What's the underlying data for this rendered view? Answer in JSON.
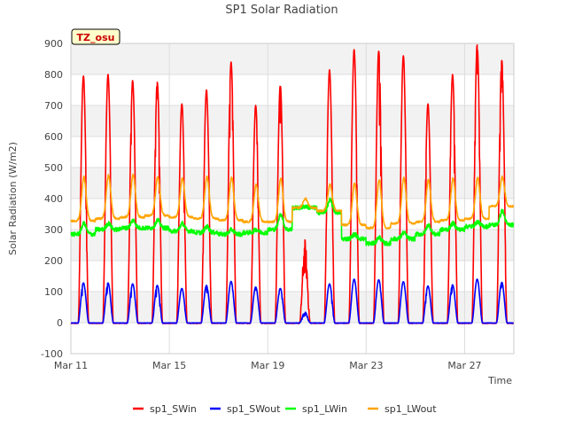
{
  "chart_data": {
    "type": "line",
    "title": "SP1 Solar Radiation",
    "xlabel": "Time",
    "ylabel": "Solar Radiation (W/m2)",
    "ylim": [
      -100,
      900
    ],
    "yticks": [
      -100,
      0,
      100,
      200,
      300,
      400,
      500,
      600,
      700,
      800,
      900
    ],
    "xlim_days": [
      11,
      29
    ],
    "xticks": [
      {
        "day": 11,
        "label": "Mar 11"
      },
      {
        "day": 15,
        "label": "Mar 15"
      },
      {
        "day": 19,
        "label": "Mar 19"
      },
      {
        "day": 23,
        "label": "Mar 23"
      },
      {
        "day": 27,
        "label": "Mar 27"
      }
    ],
    "grid": true,
    "annotation": "TZ_osu",
    "legend_position": "bottom",
    "days": [
      11,
      12,
      13,
      14,
      15,
      16,
      17,
      18,
      19,
      20,
      21,
      22,
      23,
      24,
      25,
      26,
      27,
      28
    ],
    "series": [
      {
        "name": "sp1_SWin",
        "color": "#ff0000",
        "daily_peak": [
          795,
          800,
          780,
          775,
          705,
          750,
          840,
          700,
          765,
          270,
          815,
          880,
          875,
          860,
          705,
          800,
          895,
          845
        ]
      },
      {
        "name": "sp1_SWout",
        "color": "#0000ff",
        "daily_peak": [
          128,
          128,
          125,
          120,
          110,
          120,
          133,
          115,
          110,
          35,
          125,
          140,
          138,
          132,
          118,
          122,
          140,
          130
        ]
      },
      {
        "name": "sp1_LWin",
        "color": "#00ff00",
        "daily_min": [
          285,
          300,
          305,
          305,
          295,
          290,
          285,
          290,
          300,
          370,
          355,
          270,
          255,
          270,
          285,
          300,
          310,
          315
        ],
        "daily_max": [
          320,
          320,
          330,
          330,
          320,
          310,
          300,
          300,
          350,
          375,
          395,
          285,
          275,
          290,
          315,
          320,
          325,
          360
        ]
      },
      {
        "name": "sp1_LWout",
        "color": "#ffa500",
        "daily_min": [
          328,
          335,
          340,
          345,
          340,
          335,
          330,
          325,
          325,
          370,
          360,
          315,
          305,
          320,
          325,
          330,
          335,
          375
        ],
        "daily_max": [
          470,
          475,
          478,
          470,
          465,
          470,
          468,
          445,
          465,
          400,
          445,
          448,
          460,
          468,
          460,
          465,
          468,
          470
        ]
      }
    ]
  }
}
